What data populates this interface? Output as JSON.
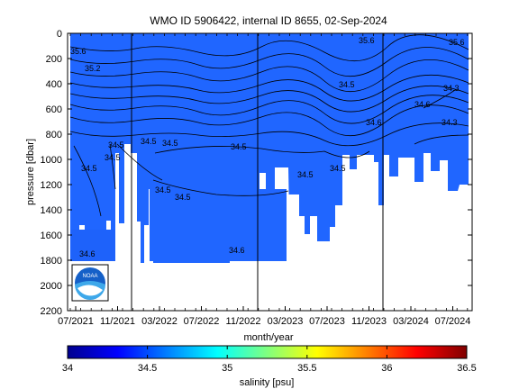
{
  "chart_data": {
    "type": "heatmap",
    "title": "WMO ID 5906422, internal ID 8655, 02-Sep-2024",
    "xlabel": "month/year",
    "ylabel": "pressure [dbar]",
    "x_ticks": [
      "07/2021",
      "11/2021",
      "03/2022",
      "07/2022",
      "11/2022",
      "03/2023",
      "07/2023",
      "11/2023",
      "03/2024",
      "07/2024"
    ],
    "y_ticks": [
      0,
      200,
      400,
      600,
      800,
      1000,
      1200,
      1400,
      1600,
      1800,
      2000,
      2200
    ],
    "ylim": [
      0,
      2200
    ],
    "colorbar": {
      "label": "salinity [psu]",
      "ticks": [
        "34",
        "34.5",
        "35",
        "35.5",
        "36",
        "36.5"
      ],
      "range": [
        34,
        36.5
      ],
      "colormap": "jet"
    },
    "vertical_lines": [
      "11/2021",
      "12/2022",
      "12/2023"
    ],
    "contour_labels": [
      "35.6",
      "35.2",
      "35.6",
      "35.6",
      "34.6",
      "34.5",
      "34.6",
      "34.3",
      "34.5",
      "34.5",
      "34.5",
      "34.5",
      "34.5",
      "34.5",
      "34.5",
      "34.5",
      "34.5",
      "34.5",
      "34.3",
      "34.6",
      "34.6"
    ],
    "logo": "NOAA"
  }
}
